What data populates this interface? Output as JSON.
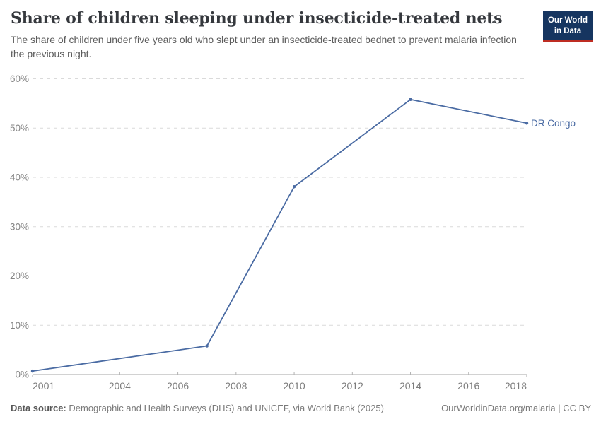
{
  "header": {
    "title": "Share of children sleeping under insecticide-treated nets",
    "subtitle": "The share of children under five years old who slept under an insecticide-treated bednet to prevent malaria infection the previous night."
  },
  "logo": {
    "line1": "Our World",
    "line2": "in Data",
    "bg_color": "#163560",
    "accent_color": "#be2d23"
  },
  "chart_data": {
    "type": "line",
    "title": "Share of children sleeping under insecticide-treated nets",
    "xlabel": "",
    "ylabel": "",
    "xlim": [
      2001,
      2018
    ],
    "ylim": [
      0,
      60
    ],
    "grid": "horizontal-dashed",
    "legend_position": "line-end-label",
    "line_color": "#4a6ba3",
    "series": [
      {
        "name": "DR Congo",
        "points": [
          {
            "x": 2001,
            "y": 0.7
          },
          {
            "x": 2007,
            "y": 5.8
          },
          {
            "x": 2010,
            "y": 38.1
          },
          {
            "x": 2014,
            "y": 55.8
          },
          {
            "x": 2018,
            "y": 51
          }
        ]
      }
    ],
    "x_ticks": [
      {
        "value": 2001,
        "label": "2001"
      },
      {
        "value": 2004,
        "label": "2004"
      },
      {
        "value": 2006,
        "label": "2006"
      },
      {
        "value": 2008,
        "label": "2008"
      },
      {
        "value": 2010,
        "label": "2010"
      },
      {
        "value": 2012,
        "label": "2012"
      },
      {
        "value": 2014,
        "label": "2014"
      },
      {
        "value": 2016,
        "label": "2016"
      },
      {
        "value": 2018,
        "label": "2018"
      }
    ],
    "y_ticks": [
      {
        "value": 0,
        "label": "0%"
      },
      {
        "value": 10,
        "label": "10%"
      },
      {
        "value": 20,
        "label": "20%"
      },
      {
        "value": 30,
        "label": "30%"
      },
      {
        "value": 40,
        "label": "40%"
      },
      {
        "value": 50,
        "label": "50%"
      },
      {
        "value": 60,
        "label": "60%"
      }
    ]
  },
  "footer": {
    "source_label": "Data source:",
    "source_text": "Demographic and Health Surveys (DHS) and UNICEF, via World Bank (2025)",
    "credit": "OurWorldinData.org/malaria | CC BY"
  }
}
